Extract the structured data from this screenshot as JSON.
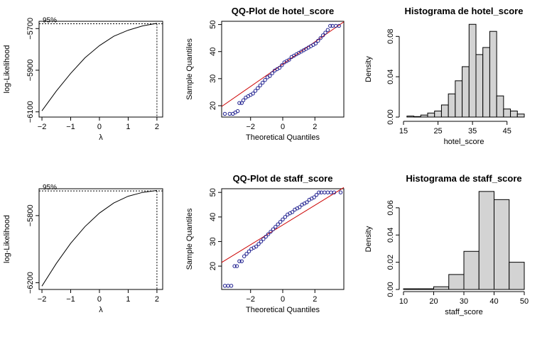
{
  "chart_data": [
    {
      "id": "boxcox_hotel",
      "type": "line",
      "title": "",
      "xlabel": "λ",
      "ylabel": "log-Likelihood",
      "xlim": [
        -2.1,
        2.2
      ],
      "ylim": [
        -6125,
        -5665
      ],
      "xticks": [
        -2,
        -1,
        0,
        1,
        2
      ],
      "yticks": [
        -6100,
        -5900,
        -5700
      ],
      "annotation": "95%",
      "ci_level": -5677,
      "ci_lambda": 2,
      "series": [
        {
          "x": [
            -2.0,
            -1.5,
            -1.0,
            -0.5,
            0.0,
            0.5,
            1.0,
            1.5,
            2.0
          ],
          "y": [
            -6095,
            -6000,
            -5915,
            -5840,
            -5782,
            -5737,
            -5708,
            -5687,
            -5675
          ]
        }
      ]
    },
    {
      "id": "qq_hotel",
      "type": "scatter",
      "title": "QQ-Plot de hotel_score",
      "xlabel": "Theoretical Quantiles",
      "ylabel": "Sample Quantiles",
      "xlim": [
        -3.8,
        3.8
      ],
      "ylim": [
        15.8,
        51.2
      ],
      "xticks": [
        -2,
        0,
        2
      ],
      "yticks": [
        20,
        30,
        40,
        50
      ],
      "ref_line": {
        "x0": -3.8,
        "y0": 19.7,
        "x1": 3.8,
        "y1": 51.0
      },
      "series": [
        {
          "x": [
            -3.6,
            -3.3,
            -3.1,
            -2.95,
            -2.8,
            -2.7,
            -2.55,
            -2.45,
            -2.3,
            -2.15,
            -2.0,
            -1.85,
            -1.7,
            -1.55,
            -1.4,
            -1.25,
            -1.1,
            -0.95,
            -0.8,
            -0.65,
            -0.5,
            -0.35,
            -0.2,
            -0.05,
            0.1,
            0.25,
            0.4,
            0.55,
            0.7,
            0.85,
            1.0,
            1.15,
            1.3,
            1.45,
            1.6,
            1.75,
            1.9,
            2.05,
            2.2,
            2.35,
            2.5,
            2.65,
            2.8,
            2.95,
            3.1,
            3.3,
            3.5
          ],
          "y": [
            17,
            17,
            17,
            17.5,
            18,
            21,
            21,
            22,
            23,
            23.5,
            24,
            24.5,
            25.5,
            26.5,
            27.5,
            28.5,
            29.5,
            30.5,
            31,
            32,
            33,
            33.5,
            34,
            35,
            36,
            36.5,
            37,
            38,
            38.5,
            39,
            39.5,
            40,
            40.5,
            41,
            41.5,
            42,
            42.5,
            43,
            44,
            45,
            46,
            47,
            48,
            49.5,
            49.5,
            49.5,
            49.5
          ]
        }
      ]
    },
    {
      "id": "hist_hotel",
      "type": "bar",
      "title": "Histograma de hotel_score",
      "xlabel": "hotel_score",
      "ylabel": "Density",
      "xlim": [
        15,
        50
      ],
      "ylim": [
        0,
        0.095
      ],
      "xticks": [
        15,
        25,
        35,
        45
      ],
      "yticks": [
        0.0,
        0.04,
        0.08
      ],
      "ytick_labels": [
        "0.00",
        "0.04",
        "0.08"
      ],
      "bin_edges": [
        16,
        18,
        20,
        22,
        24,
        26,
        28,
        30,
        32,
        34,
        36,
        38,
        40,
        42,
        44,
        46,
        48,
        50
      ],
      "values": [
        0.001,
        0.0005,
        0.002,
        0.004,
        0.006,
        0.012,
        0.023,
        0.036,
        0.05,
        0.092,
        0.062,
        0.069,
        0.085,
        0.021,
        0.008,
        0.006,
        0.003
      ]
    },
    {
      "id": "boxcox_staff",
      "type": "line",
      "title": "",
      "xlabel": "λ",
      "ylabel": "log-Likelihood",
      "xlim": [
        -2.1,
        2.2
      ],
      "ylim": [
        -6240,
        -5640
      ],
      "xticks": [
        -2,
        -1,
        0,
        1,
        2
      ],
      "yticks": [
        -6200,
        -5800
      ],
      "annotation": "95%",
      "ci_level": -5653,
      "ci_lambda": 2,
      "series": [
        {
          "x": [
            -2.0,
            -1.5,
            -1.0,
            -0.5,
            0.0,
            0.5,
            1.0,
            1.5,
            2.0
          ],
          "y": [
            -6220,
            -6085,
            -5965,
            -5865,
            -5785,
            -5725,
            -5685,
            -5662,
            -5650
          ]
        }
      ]
    },
    {
      "id": "qq_staff",
      "type": "scatter",
      "title": "QQ-Plot de staff_score",
      "xlabel": "Theoretical Quantiles",
      "ylabel": "Sample Quantiles",
      "xlim": [
        -3.8,
        3.8
      ],
      "ylim": [
        10.5,
        51.5
      ],
      "xticks": [
        -2,
        0,
        2
      ],
      "yticks": [
        20,
        30,
        40,
        50
      ],
      "ref_line": {
        "x0": -3.8,
        "y0": 21.5,
        "x1": 3.8,
        "y1": 52.0
      },
      "series": [
        {
          "x": [
            -3.6,
            -3.4,
            -3.2,
            -3.0,
            -2.85,
            -2.7,
            -2.55,
            -2.4,
            -2.25,
            -2.1,
            -1.95,
            -1.8,
            -1.65,
            -1.5,
            -1.35,
            -1.2,
            -1.05,
            -0.9,
            -0.75,
            -0.6,
            -0.45,
            -0.3,
            -0.15,
            0.0,
            0.15,
            0.3,
            0.45,
            0.6,
            0.75,
            0.9,
            1.05,
            1.2,
            1.35,
            1.5,
            1.65,
            1.8,
            1.95,
            2.1,
            2.25,
            2.4,
            2.6,
            2.8,
            3.0,
            3.2,
            3.6
          ],
          "y": [
            12,
            12,
            12,
            20,
            20,
            22,
            22,
            24,
            25,
            26,
            27,
            27.5,
            28,
            29,
            30,
            31,
            32,
            33,
            34,
            35,
            36,
            37,
            38,
            39,
            40,
            41,
            41.5,
            42,
            43,
            43.5,
            44,
            45,
            45.5,
            46,
            47,
            47.5,
            48,
            49,
            50,
            50,
            50,
            50,
            50,
            50,
            50
          ]
        }
      ]
    },
    {
      "id": "hist_staff",
      "type": "bar",
      "title": "Histograma de staff_score",
      "xlabel": "staff_score",
      "ylabel": "Density",
      "xlim": [
        10,
        50
      ],
      "ylim": [
        0,
        0.074
      ],
      "xticks": [
        10,
        20,
        30,
        40,
        50
      ],
      "yticks": [
        0.0,
        0.02,
        0.04,
        0.06
      ],
      "ytick_labels": [
        "0.00",
        "0.02",
        "0.04",
        "0.06"
      ],
      "bin_edges": [
        10,
        15,
        20,
        25,
        30,
        35,
        40,
        45,
        50
      ],
      "values": [
        0.0005,
        0.0005,
        0.002,
        0.011,
        0.028,
        0.072,
        0.066,
        0.02
      ]
    }
  ]
}
